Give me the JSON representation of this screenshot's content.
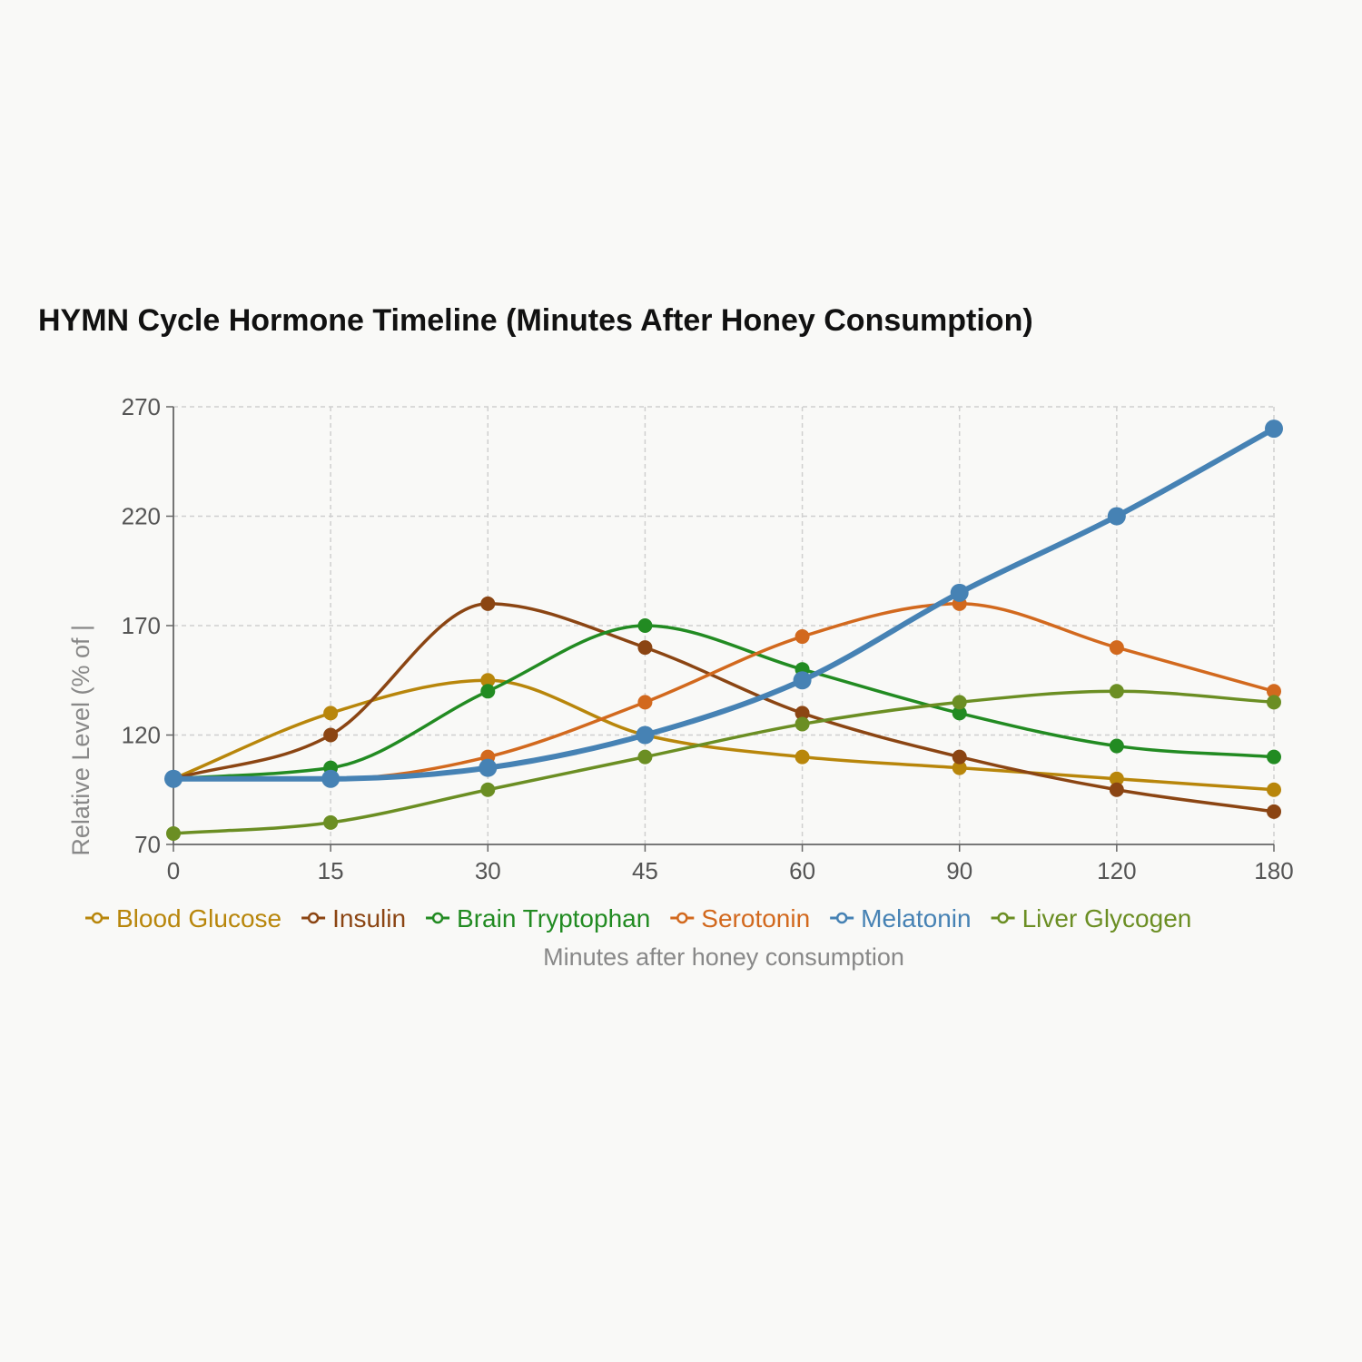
{
  "chart_data": {
    "type": "line",
    "title": "HYMN Cycle Hormone Timeline (Minutes After Honey Consumption)",
    "xlabel": "Minutes after honey consumption",
    "ylabel": "Relative Level (% of |",
    "categories": [
      "0",
      "15",
      "30",
      "45",
      "60",
      "90",
      "120",
      "180"
    ],
    "ylim": [
      70,
      270
    ],
    "yticks": [
      70,
      120,
      170,
      220,
      270
    ],
    "grid": true,
    "legend": "bottom",
    "series": [
      {
        "name": "Blood Glucose",
        "color": "#b8860b",
        "values": [
          100,
          130,
          145,
          120,
          110,
          105,
          100,
          95
        ]
      },
      {
        "name": "Insulin",
        "color": "#8b4513",
        "values": [
          100,
          120,
          180,
          160,
          130,
          110,
          95,
          85
        ]
      },
      {
        "name": "Brain Tryptophan",
        "color": "#228b22",
        "values": [
          100,
          105,
          140,
          170,
          150,
          130,
          115,
          110
        ]
      },
      {
        "name": "Serotonin",
        "color": "#d2691e",
        "values": [
          100,
          100,
          110,
          135,
          165,
          180,
          160,
          140
        ]
      },
      {
        "name": "Melatonin",
        "color": "#4682b4",
        "values": [
          100,
          100,
          105,
          120,
          145,
          185,
          220,
          260
        ]
      },
      {
        "name": "Liver Glycogen",
        "color": "#6b8e23",
        "values": [
          75,
          80,
          95,
          110,
          125,
          135,
          140,
          135
        ]
      }
    ]
  }
}
